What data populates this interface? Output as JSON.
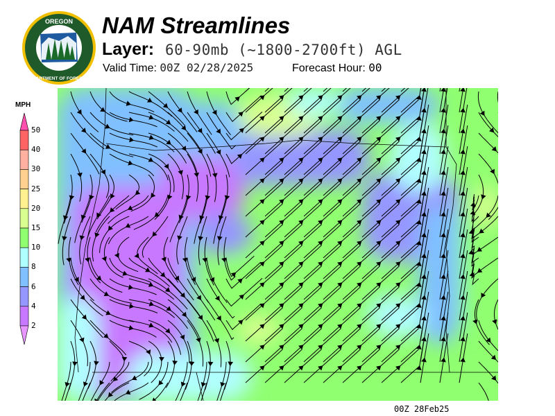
{
  "header": {
    "title": "NAM Streamlines",
    "layer_label": "Layer:",
    "layer_value": "60-90mb (~1800-2700ft) AGL",
    "valid_label": "Valid Time:",
    "valid_value": "00Z 02/28/2025",
    "forecast_label": "Forecast Hour:",
    "forecast_value": "00"
  },
  "logo": {
    "text_top": "OREGON",
    "text_bottom": "DEPARTMENT OF FORESTRY",
    "colors": {
      "ring": "#1f5a2a",
      "border": "#f0c000"
    }
  },
  "legend": {
    "unit": "MPH",
    "ticks": [
      "50",
      "40",
      "30",
      "25",
      "20",
      "15",
      "10",
      "8",
      "6",
      "4",
      "2"
    ],
    "colors": [
      "#ff6464",
      "#ffb0a0",
      "#ffd090",
      "#fff090",
      "#d8ff90",
      "#90ff70",
      "#b0ffff",
      "#80c0ff",
      "#9696ff",
      "#c878ff"
    ],
    "over_color": "#ff50b0",
    "under_color": "#e896ff"
  },
  "footer": "00Z 28Feb25"
}
